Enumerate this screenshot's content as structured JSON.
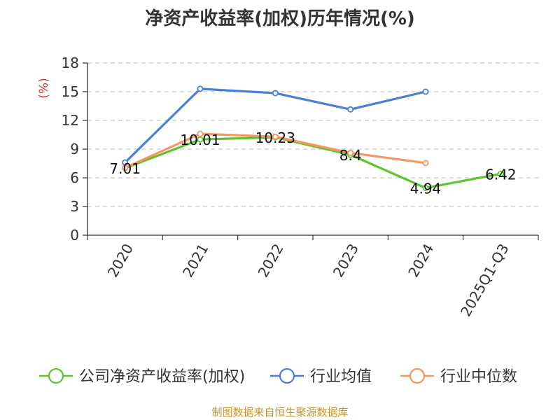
{
  "title": "净资产收益率(加权)历年情况(%)",
  "source": "制图数据来自恒生聚源数据库",
  "chart_data": {
    "type": "line",
    "title": "净资产收益率(加权)历年情况(%)",
    "ylabel": "(%)",
    "xlabel": "",
    "ylim": [
      0,
      18
    ],
    "yticks": [
      0,
      3,
      6,
      9,
      12,
      15,
      18
    ],
    "grid": true,
    "legend_position": "bottom",
    "categories": [
      "2020",
      "2021",
      "2022",
      "2023",
      "2024",
      "2025Q1-Q3"
    ],
    "series": [
      {
        "name": "公司净资产收益率(加权)",
        "color": "#5dc42e",
        "values": [
          7.01,
          10.01,
          10.23,
          8.4,
          4.94,
          6.42
        ],
        "show_labels": true
      },
      {
        "name": "行业均值",
        "color": "#4b7fd6",
        "values": [
          7.6,
          15.3,
          14.85,
          13.15,
          15.0,
          null
        ],
        "show_labels": false
      },
      {
        "name": "行业中位数",
        "color": "#f79563",
        "values": [
          7.05,
          10.6,
          10.3,
          8.6,
          7.55,
          null
        ],
        "show_labels": false
      }
    ]
  }
}
